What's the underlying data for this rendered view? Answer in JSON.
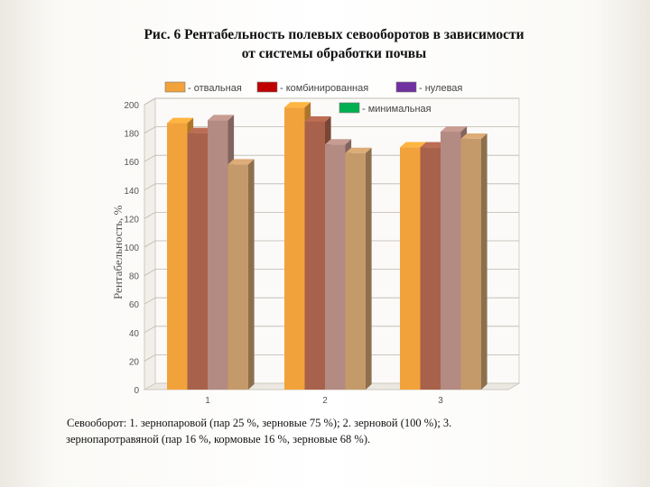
{
  "title_lines": [
    "Рис. 6  Рентабельность полевых севооборотов в зависимости",
    "от системы обработки почвы"
  ],
  "caption_lines": [
    "Севооборот: 1. зернопаровой (пар 25 %, зерновые 75 %); 2. зерновой (100 %); 3.",
    "зернопаротравяной (пар 16 %, кормовые 16 %, зерновые 68 %)."
  ],
  "chart_data": {
    "type": "bar",
    "categories": [
      "1",
      "2",
      "3"
    ],
    "series": [
      {
        "name": "- отвальная",
        "values": [
          187,
          198,
          170
        ],
        "color": "#f2a23a"
      },
      {
        "name": "- комбинированная",
        "values": [
          180,
          188,
          170
        ],
        "color": "#a8614a"
      },
      {
        "name": "- нулевая",
        "values": [
          189,
          172,
          181
        ],
        "color": "#b38b82"
      },
      {
        "name": "- минимальная",
        "values": [
          158,
          166,
          176
        ],
        "color": "#c59a6a"
      }
    ],
    "legend_swatches": [
      "#f2a23a",
      "#c00000",
      "#7030a0",
      "#00b050"
    ],
    "legend_position": "top",
    "xlabel": "",
    "ylabel": "Рентабельность, %",
    "ylim": [
      0,
      200
    ],
    "yticks": [
      0,
      20,
      40,
      60,
      80,
      100,
      120,
      140,
      160,
      180,
      200
    ],
    "grid": true
  }
}
